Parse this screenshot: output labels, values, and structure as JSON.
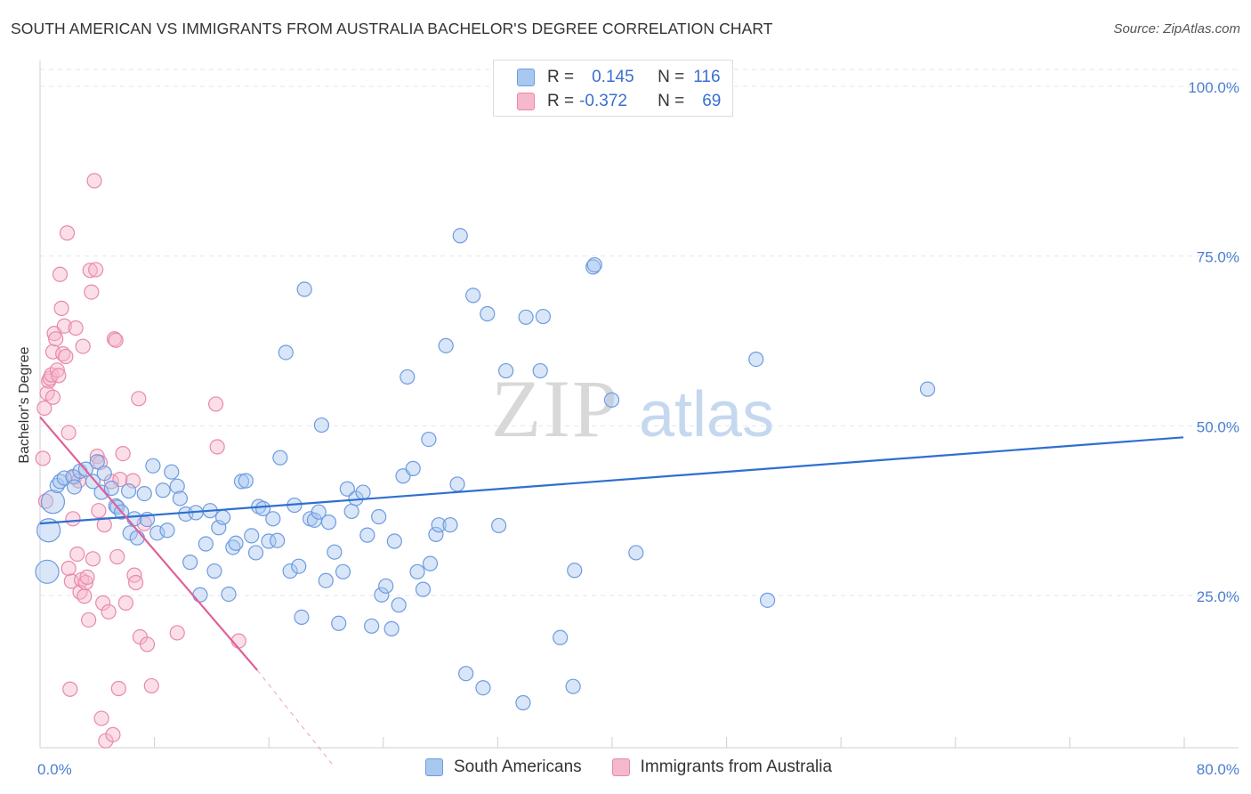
{
  "title": "SOUTH AMERICAN VS IMMIGRANTS FROM AUSTRALIA BACHELOR'S DEGREE CORRELATION CHART",
  "source": "Source: ZipAtlas.com",
  "watermark": {
    "zip": "ZIP",
    "atlas": "atlas"
  },
  "legend": {
    "rows": [
      {
        "r_label": "R =",
        "r_value": "0.145",
        "n_label": "N =",
        "n_value": "116"
      },
      {
        "r_label": "R =",
        "r_value": "-0.372",
        "n_label": "N =",
        "n_value": "69"
      }
    ]
  },
  "bottom_legend": [
    "South Americans",
    "Immigrants from Australia"
  ],
  "colors": {
    "blue_fill": "#a9c8f0",
    "blue_stroke": "#6d9be0",
    "blue_line": "#2f6fd0",
    "pink_fill": "#f6b8cb",
    "pink_stroke": "#e889a8",
    "pink_line": "#e0609a",
    "axis_text": "#4a7fd0",
    "grid": "#e6e6e6"
  },
  "chart_data": {
    "type": "scatter",
    "title": "SOUTH AMERICAN VS IMMIGRANTS FROM AUSTRALIA BACHELOR'S DEGREE CORRELATION CHART",
    "xlabel": "",
    "ylabel": "Bachelor's Degree",
    "xlim": [
      0,
      80
    ],
    "ylim": [
      0,
      105
    ],
    "x_tick_labels": [
      "0.0%",
      "80.0%"
    ],
    "y_ticks": [
      25,
      50,
      75,
      100
    ],
    "y_tick_labels": [
      "25.0%",
      "50.0%",
      "75.0%",
      "100.0%"
    ],
    "series": [
      {
        "name": "South Americans",
        "r": 0.145,
        "n": 116,
        "trend": {
          "x0": 0,
          "y0": 35.6,
          "x1": 80,
          "y1": 48.3
        },
        "points": [
          [
            0.5,
            28.5
          ],
          [
            0.6,
            34.6
          ],
          [
            0.9,
            38.8
          ],
          [
            1.2,
            41.2
          ],
          [
            1.4,
            41.8
          ],
          [
            1.7,
            42.3
          ],
          [
            2.3,
            42.5
          ],
          [
            2.4,
            41.0
          ],
          [
            2.8,
            43.3
          ],
          [
            3.2,
            43.6
          ],
          [
            3.7,
            41.8
          ],
          [
            4.0,
            44.7
          ],
          [
            4.3,
            40.2
          ],
          [
            4.5,
            43.0
          ],
          [
            5.0,
            40.8
          ],
          [
            5.3,
            38.2
          ],
          [
            5.4,
            38.0
          ],
          [
            5.7,
            37.3
          ],
          [
            6.2,
            40.4
          ],
          [
            6.3,
            34.2
          ],
          [
            6.6,
            36.3
          ],
          [
            6.8,
            33.5
          ],
          [
            7.3,
            40.0
          ],
          [
            7.5,
            36.2
          ],
          [
            7.9,
            44.1
          ],
          [
            8.2,
            34.2
          ],
          [
            8.6,
            40.5
          ],
          [
            8.9,
            34.6
          ],
          [
            9.2,
            43.2
          ],
          [
            9.6,
            41.1
          ],
          [
            9.8,
            39.3
          ],
          [
            10.2,
            37.0
          ],
          [
            10.5,
            29.9
          ],
          [
            10.9,
            37.2
          ],
          [
            11.2,
            25.1
          ],
          [
            11.6,
            32.6
          ],
          [
            11.9,
            37.5
          ],
          [
            12.2,
            28.6
          ],
          [
            12.5,
            35.0
          ],
          [
            12.8,
            36.5
          ],
          [
            13.2,
            25.2
          ],
          [
            13.5,
            32.1
          ],
          [
            13.7,
            32.7
          ],
          [
            14.1,
            41.8
          ],
          [
            14.4,
            41.9
          ],
          [
            14.8,
            33.8
          ],
          [
            15.1,
            31.3
          ],
          [
            15.3,
            38.1
          ],
          [
            15.6,
            37.8
          ],
          [
            16.0,
            33.0
          ],
          [
            16.3,
            36.3
          ],
          [
            16.6,
            33.1
          ],
          [
            16.8,
            45.3
          ],
          [
            17.2,
            60.8
          ],
          [
            17.5,
            28.6
          ],
          [
            17.8,
            38.3
          ],
          [
            18.1,
            29.3
          ],
          [
            18.3,
            21.8
          ],
          [
            18.5,
            70.1
          ],
          [
            18.9,
            36.3
          ],
          [
            19.2,
            36.1
          ],
          [
            19.5,
            37.3
          ],
          [
            19.7,
            50.1
          ],
          [
            20.0,
            27.2
          ],
          [
            20.2,
            35.8
          ],
          [
            20.6,
            31.4
          ],
          [
            20.9,
            20.9
          ],
          [
            21.2,
            28.5
          ],
          [
            21.5,
            40.7
          ],
          [
            21.8,
            37.4
          ],
          [
            22.1,
            39.3
          ],
          [
            22.6,
            40.2
          ],
          [
            22.9,
            33.9
          ],
          [
            23.2,
            20.5
          ],
          [
            23.7,
            36.6
          ],
          [
            23.9,
            25.1
          ],
          [
            24.2,
            26.4
          ],
          [
            24.6,
            20.1
          ],
          [
            24.8,
            33.0
          ],
          [
            25.1,
            23.6
          ],
          [
            25.4,
            42.6
          ],
          [
            25.7,
            57.2
          ],
          [
            26.1,
            43.7
          ],
          [
            26.4,
            28.5
          ],
          [
            26.8,
            25.9
          ],
          [
            27.2,
            48.0
          ],
          [
            27.3,
            29.7
          ],
          [
            27.7,
            34.0
          ],
          [
            27.9,
            35.4
          ],
          [
            28.4,
            61.8
          ],
          [
            28.7,
            35.4
          ],
          [
            29.2,
            41.4
          ],
          [
            29.4,
            78.0
          ],
          [
            29.8,
            13.5
          ],
          [
            30.3,
            69.2
          ],
          [
            31.0,
            11.4
          ],
          [
            31.3,
            66.5
          ],
          [
            32.1,
            35.3
          ],
          [
            32.6,
            58.1
          ],
          [
            33.8,
            9.2
          ],
          [
            34.0,
            66.0
          ],
          [
            35.0,
            58.1
          ],
          [
            35.2,
            66.1
          ],
          [
            36.4,
            18.8
          ],
          [
            37.3,
            11.6
          ],
          [
            37.4,
            28.7
          ],
          [
            38.7,
            73.4
          ],
          [
            38.8,
            73.7
          ],
          [
            40.0,
            53.8
          ],
          [
            41.7,
            31.3
          ],
          [
            50.1,
            59.8
          ],
          [
            50.9,
            24.3
          ],
          [
            62.1,
            55.4
          ]
        ],
        "large_points": [
          [
            0.5,
            28.5
          ],
          [
            0.6,
            34.6
          ],
          [
            0.9,
            38.8
          ]
        ]
      },
      {
        "name": "Immigrants from Australia",
        "r": -0.372,
        "n": 69,
        "trend": {
          "x0": 0,
          "y0": 51.3,
          "x1": 15.2,
          "y1": 14.0,
          "dashed_to": {
            "x": 20.5,
            "y": 0
          }
        },
        "points": [
          [
            0.2,
            45.2
          ],
          [
            0.3,
            52.6
          ],
          [
            0.4,
            38.9
          ],
          [
            0.5,
            54.8
          ],
          [
            0.6,
            56.6
          ],
          [
            0.7,
            57.0
          ],
          [
            0.8,
            57.5
          ],
          [
            0.9,
            60.9
          ],
          [
            0.9,
            54.2
          ],
          [
            1.0,
            63.6
          ],
          [
            1.1,
            62.8
          ],
          [
            1.2,
            58.2
          ],
          [
            1.3,
            57.4
          ],
          [
            1.4,
            72.3
          ],
          [
            1.5,
            67.3
          ],
          [
            1.6,
            60.6
          ],
          [
            1.7,
            64.7
          ],
          [
            1.8,
            60.2
          ],
          [
            1.9,
            78.4
          ],
          [
            2.0,
            29.0
          ],
          [
            2.1,
            11.2
          ],
          [
            2.2,
            27.1
          ],
          [
            2.3,
            36.3
          ],
          [
            2.4,
            42.4
          ],
          [
            2.5,
            64.4
          ],
          [
            2.6,
            31.1
          ],
          [
            2.7,
            41.9
          ],
          [
            2.8,
            25.5
          ],
          [
            2.9,
            27.3
          ],
          [
            3.0,
            61.7
          ],
          [
            3.1,
            24.9
          ],
          [
            3.2,
            26.9
          ],
          [
            3.3,
            27.7
          ],
          [
            3.4,
            21.4
          ],
          [
            3.5,
            72.9
          ],
          [
            3.6,
            69.7
          ],
          [
            3.7,
            30.4
          ],
          [
            3.8,
            86.1
          ],
          [
            3.9,
            73.0
          ],
          [
            4.0,
            45.5
          ],
          [
            4.1,
            37.5
          ],
          [
            4.2,
            44.6
          ],
          [
            4.3,
            6.9
          ],
          [
            4.4,
            23.9
          ],
          [
            4.5,
            35.4
          ],
          [
            4.6,
            3.6
          ],
          [
            4.8,
            22.6
          ],
          [
            5.0,
            41.8
          ],
          [
            5.1,
            4.5
          ],
          [
            5.2,
            62.8
          ],
          [
            5.3,
            62.6
          ],
          [
            5.4,
            30.7
          ],
          [
            5.5,
            11.3
          ],
          [
            5.6,
            42.1
          ],
          [
            5.8,
            45.9
          ],
          [
            6.0,
            23.9
          ],
          [
            6.5,
            41.9
          ],
          [
            6.6,
            28.0
          ],
          [
            6.7,
            26.9
          ],
          [
            6.9,
            54.0
          ],
          [
            7.0,
            18.9
          ],
          [
            7.3,
            35.6
          ],
          [
            7.5,
            17.8
          ],
          [
            7.8,
            11.7
          ],
          [
            9.6,
            19.5
          ],
          [
            12.3,
            53.2
          ],
          [
            12.4,
            46.9
          ],
          [
            13.9,
            18.3
          ],
          [
            2.0,
            49.0
          ]
        ]
      }
    ]
  }
}
